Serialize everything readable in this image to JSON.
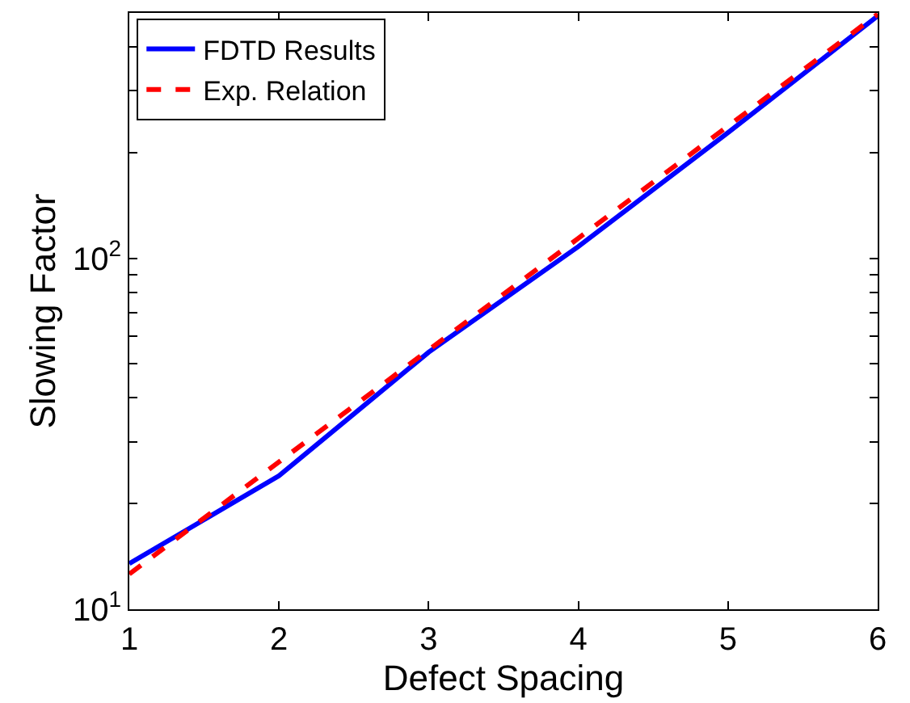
{
  "chart_data": {
    "type": "line",
    "xlabel": "Defect Spacing",
    "ylabel": "Slowing Factor",
    "x": [
      1,
      2,
      3,
      4,
      5,
      6
    ],
    "series": [
      {
        "name": "FDTD Results",
        "color": "#0000ff",
        "line_style": "solid",
        "values": [
          13.5,
          24,
          54,
          108,
          228,
          490
        ]
      },
      {
        "name": "Exp. Relation",
        "color": "#ff0000",
        "line_style": "dashed",
        "values": [
          12.6,
          26.3,
          54.8,
          114,
          238,
          496
        ]
      }
    ],
    "log": "y",
    "xlim": [
      1,
      6
    ],
    "xticks": [
      1,
      2,
      3,
      4,
      5,
      6
    ],
    "ylim": [
      10,
      500
    ],
    "yticks": [
      {
        "value": 10,
        "label": "10$^{1}$"
      },
      {
        "value": 20,
        "label": null
      },
      {
        "value": 30,
        "label": null
      },
      {
        "value": 40,
        "label": null
      },
      {
        "value": 50,
        "label": null
      },
      {
        "value": 60,
        "label": null
      },
      {
        "value": 70,
        "label": null
      },
      {
        "value": 80,
        "label": null
      },
      {
        "value": 90,
        "label": null
      },
      {
        "value": 100,
        "label": "10$^{2}$"
      },
      {
        "value": 200,
        "label": null
      },
      {
        "value": 300,
        "label": null
      },
      {
        "value": 400,
        "label": null
      }
    ],
    "legend": "top left",
    "marker": "none"
  }
}
